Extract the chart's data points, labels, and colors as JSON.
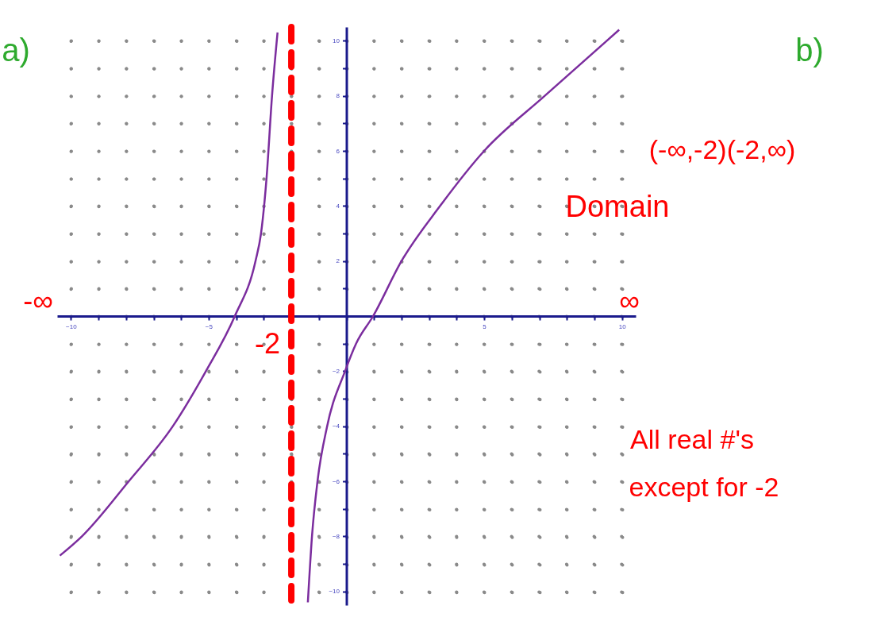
{
  "chart_data": {
    "type": "line",
    "title": "a)",
    "xlim": [
      -10.5,
      10.5
    ],
    "ylim": [
      -10.5,
      10.5
    ],
    "xticks": [
      -10,
      {
        "value": -9,
        "label": null
      },
      {
        "value": -8,
        "label": null
      },
      {
        "value": -7,
        "label": null
      },
      {
        "value": -6,
        "label": null
      },
      -5,
      {
        "value": -4,
        "label": null
      },
      {
        "value": -3,
        "label": null
      },
      {
        "value": -2,
        "label": null
      },
      {
        "value": -1,
        "label": null
      },
      {
        "value": 0,
        "label": null
      },
      {
        "value": 1,
        "label": null
      },
      {
        "value": 2,
        "label": null
      },
      {
        "value": 3,
        "label": null
      },
      {
        "value": 4,
        "label": null
      },
      5,
      {
        "value": 6,
        "label": null
      },
      {
        "value": 7,
        "label": null
      },
      {
        "value": 8,
        "label": null
      },
      {
        "value": 9,
        "label": null
      },
      10
    ],
    "yticks": [
      -10,
      {
        "value": -9,
        "label": null
      },
      -8,
      {
        "value": -7,
        "label": null
      },
      -6,
      {
        "value": -5,
        "label": null
      },
      -4,
      {
        "value": -3,
        "label": null
      },
      -2,
      {
        "value": -1,
        "label": null
      },
      {
        "value": 0,
        "label": null
      },
      {
        "value": 1,
        "label": null
      },
      2,
      {
        "value": 3,
        "label": null
      },
      4,
      {
        "value": 5,
        "label": null
      },
      6,
      {
        "value": 7,
        "label": null
      },
      8,
      {
        "value": 9,
        "label": null
      },
      10
    ],
    "grid": true,
    "marker": "none",
    "line_style": "solid",
    "series": [
      {
        "color": "#7b2d9e",
        "x": [
          -10.4,
          -9.6,
          -7.9,
          -6.3,
          -5.1,
          -4.05,
          -3.3,
          -3.1,
          -2.9,
          -2.7,
          -2.5,
          -2,
          -1.4,
          -1.25,
          -1.05,
          -0.7,
          -0.05,
          0.35,
          0.97,
          2.0,
          3.4,
          5.0,
          7.2,
          9.9
        ],
        "values": [
          -8.7,
          -8,
          -6,
          -4,
          -2,
          0,
          2,
          3,
          5,
          8,
          10.3,
          null,
          -10.4,
          -8,
          -6,
          -4,
          -2,
          -1,
          0,
          2,
          4,
          6,
          8,
          10.4
        ]
      }
    ],
    "ref_lines": [
      {
        "axis": "x",
        "value": -2,
        "label": "-2",
        "color": "#ff0000",
        "line_style": "dashed"
      }
    ],
    "annotations": [
      "b)",
      "-∞",
      "∞",
      "(-∞,-2)(-2,∞)",
      "Domain",
      "All real #'s",
      "except for -2"
    ]
  }
}
